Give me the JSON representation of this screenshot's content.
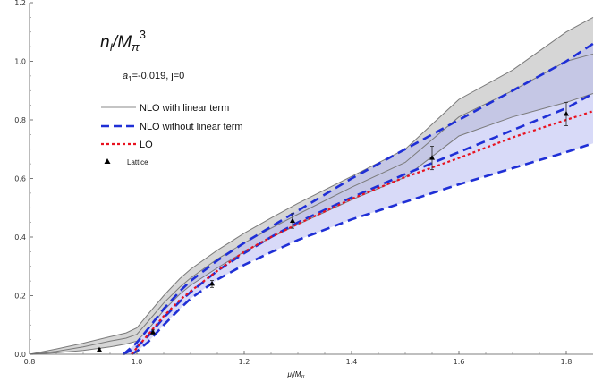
{
  "chart_data": {
    "type": "line",
    "title": "n_I/M_π³",
    "title_parts": {
      "n": "n",
      "sub": "I",
      "slash": "/",
      "M": "M",
      "pi": "π",
      "pow": "3"
    },
    "annotation": {
      "a": "a",
      "sub": "1",
      "rest": "=-0.019, j=0"
    },
    "xlabel": {
      "mu": "μ",
      "sub": "I",
      "slash": "/",
      "M": "M",
      "pi": "π"
    },
    "xlim": [
      0.8,
      1.85
    ],
    "ylim": [
      0.0,
      1.2
    ],
    "x_ticks": [
      "0.8",
      "1.0",
      "1.2",
      "1.4",
      "1.6",
      "1.8"
    ],
    "x_tick_values": [
      0.8,
      1.0,
      1.2,
      1.4,
      1.6,
      1.8
    ],
    "y_ticks": [
      "0.0",
      "0.2",
      "0.4",
      "0.6",
      "0.8",
      "1.0",
      "1.2"
    ],
    "y_tick_values": [
      0.0,
      0.2,
      0.4,
      0.6,
      0.8,
      1.0,
      1.2
    ],
    "legend": [
      {
        "label": "NLO with linear term",
        "style": "solid-gray"
      },
      {
        "label": "NLO without linear term",
        "style": "dashed-blue"
      },
      {
        "label": "LO",
        "style": "dotted-red"
      },
      {
        "label": "Lattice",
        "style": "triangle"
      }
    ],
    "series": [
      {
        "name": "NLO with linear term",
        "role": "upper",
        "color": "#7a7a7a",
        "x": [
          0.8,
          0.85,
          0.9,
          0.95,
          0.98,
          1.0,
          1.02,
          1.05,
          1.08,
          1.1,
          1.15,
          1.2,
          1.25,
          1.3,
          1.4,
          1.5,
          1.6,
          1.7,
          1.8,
          1.85
        ],
        "y": [
          0.0,
          0.018,
          0.038,
          0.06,
          0.073,
          0.09,
          0.135,
          0.2,
          0.258,
          0.29,
          0.355,
          0.413,
          0.465,
          0.515,
          0.607,
          0.7,
          0.87,
          0.97,
          1.1,
          1.15
        ]
      },
      {
        "name": "NLO with linear term",
        "role": "middle",
        "color": "#7a7a7a",
        "x": [
          0.8,
          0.85,
          0.9,
          0.95,
          0.98,
          1.0,
          1.02,
          1.05,
          1.08,
          1.1,
          1.15,
          1.2,
          1.25,
          1.3,
          1.4,
          1.5,
          1.6,
          1.7,
          1.8,
          1.85
        ],
        "y": [
          0.0,
          0.01,
          0.025,
          0.045,
          0.055,
          0.068,
          0.11,
          0.175,
          0.229,
          0.26,
          0.325,
          0.38,
          0.43,
          0.478,
          0.57,
          0.655,
          0.81,
          0.9,
          1.0,
          1.025
        ]
      },
      {
        "name": "NLO with linear term",
        "role": "lower",
        "color": "#7a7a7a",
        "x": [
          0.8,
          0.85,
          0.9,
          0.95,
          0.98,
          1.0,
          1.02,
          1.05,
          1.08,
          1.1,
          1.15,
          1.2,
          1.25,
          1.3,
          1.4,
          1.5,
          1.6,
          1.7,
          1.8,
          1.85
        ],
        "y": [
          0.0,
          0.005,
          0.013,
          0.025,
          0.035,
          0.045,
          0.082,
          0.15,
          0.205,
          0.235,
          0.295,
          0.35,
          0.398,
          0.443,
          0.527,
          0.605,
          0.745,
          0.81,
          0.86,
          0.89
        ]
      },
      {
        "name": "NLO without linear term",
        "role": "upper",
        "color": "#1f2fd6",
        "x": [
          0.975,
          1.0,
          1.02,
          1.05,
          1.08,
          1.1,
          1.15,
          1.2,
          1.25,
          1.3,
          1.4,
          1.5,
          1.6,
          1.7,
          1.8,
          1.85
        ],
        "y": [
          0.0,
          0.04,
          0.085,
          0.155,
          0.215,
          0.25,
          0.32,
          0.38,
          0.435,
          0.49,
          0.6,
          0.7,
          0.8,
          0.9,
          1.0,
          1.06
        ]
      },
      {
        "name": "NLO without linear term",
        "role": "middle",
        "color": "#1f2fd6",
        "x": [
          0.975,
          1.0,
          1.02,
          1.05,
          1.08,
          1.1,
          1.15,
          1.2,
          1.25,
          1.3,
          1.4,
          1.5,
          1.6,
          1.7,
          1.8,
          1.85
        ],
        "y": [
          0.0,
          0.025,
          0.06,
          0.125,
          0.18,
          0.212,
          0.285,
          0.345,
          0.4,
          0.45,
          0.535,
          0.615,
          0.69,
          0.765,
          0.84,
          0.89
        ]
      },
      {
        "name": "NLO without linear term",
        "role": "lower",
        "color": "#1f2fd6",
        "x": [
          0.99,
          1.0,
          1.02,
          1.05,
          1.08,
          1.1,
          1.15,
          1.2,
          1.25,
          1.3,
          1.4,
          1.5,
          1.6,
          1.7,
          1.8,
          1.85
        ],
        "y": [
          0.0,
          0.01,
          0.04,
          0.1,
          0.155,
          0.19,
          0.255,
          0.305,
          0.348,
          0.39,
          0.46,
          0.52,
          0.58,
          0.635,
          0.69,
          0.72
        ]
      },
      {
        "name": "LO",
        "color": "#e8121f",
        "x": [
          0.99,
          1.0,
          1.02,
          1.05,
          1.08,
          1.1,
          1.15,
          1.2,
          1.25,
          1.3,
          1.4,
          1.5,
          1.6,
          1.7,
          1.8,
          1.85
        ],
        "y": [
          0.0,
          0.022,
          0.065,
          0.13,
          0.185,
          0.215,
          0.285,
          0.35,
          0.4,
          0.445,
          0.53,
          0.605,
          0.67,
          0.74,
          0.8,
          0.83
        ]
      }
    ],
    "lattice": [
      {
        "x": 0.93,
        "y": 0.015,
        "err": 0.005
      },
      {
        "x": 1.03,
        "y": 0.075,
        "err": 0.008
      },
      {
        "x": 1.14,
        "y": 0.24,
        "err": 0.012
      },
      {
        "x": 1.29,
        "y": 0.455,
        "err": 0.025
      },
      {
        "x": 1.55,
        "y": 0.67,
        "err": 0.04
      },
      {
        "x": 1.8,
        "y": 0.82,
        "err": 0.04
      }
    ],
    "bands": [
      {
        "between": [
          "NLO with linear term",
          "upper",
          "lower"
        ],
        "color": "#cfcfcf"
      },
      {
        "between": [
          "NLO without linear term",
          "upper",
          "lower"
        ],
        "color": "#b8bcf2"
      }
    ],
    "grid": false,
    "legend_position": "upper-left"
  }
}
